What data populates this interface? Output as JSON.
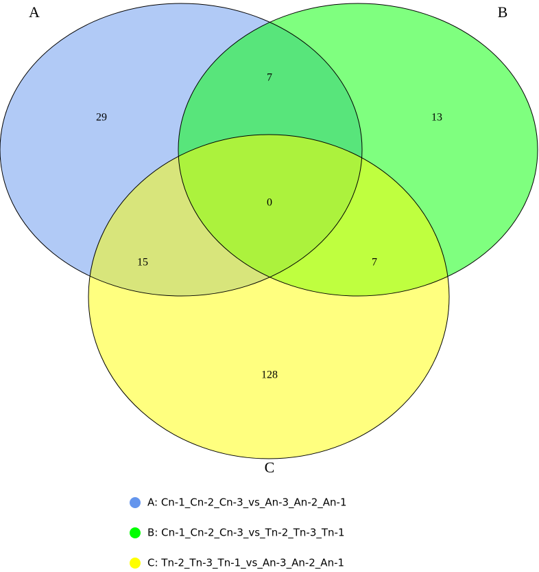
{
  "chart_data": {
    "type": "venn",
    "sets": [
      {
        "name": "A",
        "label": "A: Cn-1_Cn-2_Cn-3_vs_An-3_An-2_An-1",
        "color": "#6495ed"
      },
      {
        "name": "B",
        "label": "B: Cn-1_Cn-2_Cn-3_vs_Tn-2_Tn-3_Tn-1",
        "color": "#00ff00"
      },
      {
        "name": "C",
        "label": "C: Tn-2_Tn-3_Tn-1_vs_An-3_An-2_An-1",
        "color": "#ffff00"
      }
    ],
    "regions": [
      {
        "sets": [
          "A"
        ],
        "value": 29
      },
      {
        "sets": [
          "B"
        ],
        "value": 13
      },
      {
        "sets": [
          "C"
        ],
        "value": 128
      },
      {
        "sets": [
          "A",
          "B"
        ],
        "value": 7
      },
      {
        "sets": [
          "A",
          "C"
        ],
        "value": 15
      },
      {
        "sets": [
          "B",
          "C"
        ],
        "value": 7
      },
      {
        "sets": [
          "A",
          "B",
          "C"
        ],
        "value": 0
      }
    ]
  }
}
